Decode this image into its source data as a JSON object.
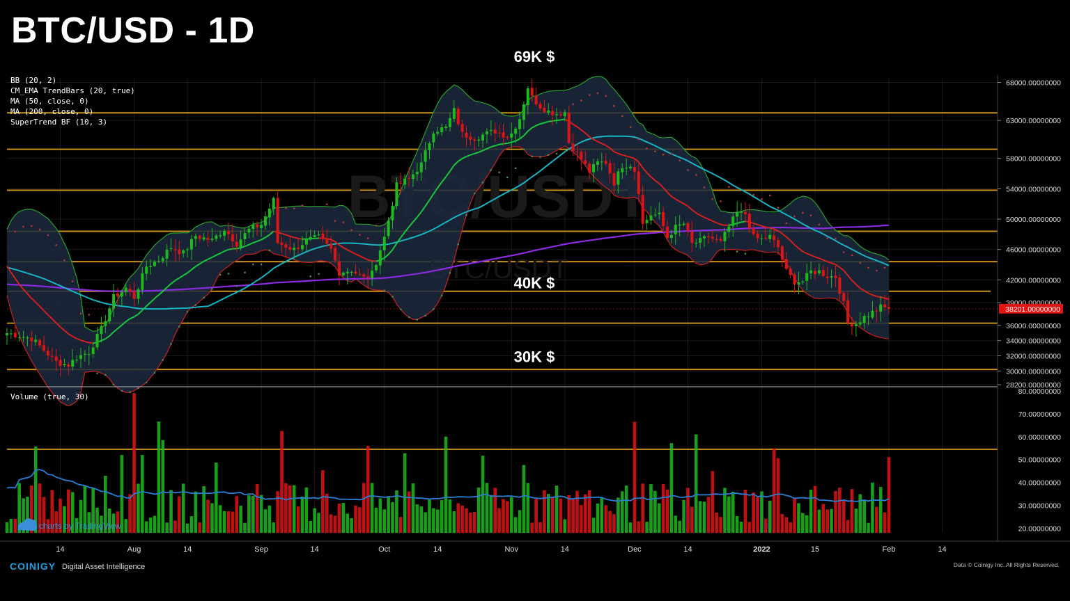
{
  "page": {
    "title": "BTC/USD - 1D"
  },
  "indicators": [
    "BB (20, 2)",
    "CM_EMA TrendBars (20, true)",
    "MA (50, close, 0)",
    "MA (200, close, 0)",
    "SuperTrend BF (10, 3)"
  ],
  "volume_label": "Volume (true, 30)",
  "annotations": [
    {
      "text": "69K $",
      "price": 70700
    },
    {
      "text": "40K $",
      "price": 40900
    },
    {
      "text": "30K $",
      "price": 31200
    }
  ],
  "watermark": {
    "main": "BTC/USDT",
    "sub": "BTC/USDT"
  },
  "tradingview_label": "charts by TradingView",
  "footer": {
    "brand": "COINIGY",
    "tagline": "Digital Asset Intelligence",
    "data_credit": "Data © Coinigy Inc. All Rights Reserved."
  },
  "current_price_label": "38201.00000000",
  "colors": {
    "bull": "#1fb81f",
    "bear": "#e01414",
    "level_line": "#c8921a",
    "bb_fill": "#1c2a40",
    "bb_upper": "#2aa12a",
    "bb_lower": "#cc2020",
    "ma50": "#18b4c4",
    "ma200": "#8a2be2",
    "ema20_bull": "#18c83c",
    "ema20_bear": "#d42020",
    "volume_ma": "#2a7fd4",
    "supertrend_up": "#4a8a5a",
    "supertrend_down": "#b03a3a"
  },
  "chart_data": {
    "type": "candlestick",
    "symbol": "BTC/USD",
    "interval": "1D",
    "y_axis": {
      "range": [
        28200,
        68600
      ],
      "ticks": [
        "68000.00000000",
        "63000.00000000",
        "58000.00000000",
        "54000.00000000",
        "50000.00000000",
        "46000.00000000",
        "42000.00000000",
        "39000.00000000",
        "36000.00000000",
        "34000.00000000",
        "32000.00000000",
        "30000.00000000",
        "28200.00000000"
      ],
      "tick_values": [
        68000,
        63000,
        58000,
        54000,
        50000,
        46000,
        42000,
        39000,
        36000,
        34000,
        32000,
        30000,
        28200
      ]
    },
    "volume_axis": {
      "range": [
        18000,
        80000
      ],
      "ticks": [
        "80.00000000",
        "70.00000000",
        "60.00000000",
        "50.00000000",
        "40.00000000",
        "30.00000000",
        "20.00000000"
      ],
      "tick_values": [
        80000,
        70000,
        60000,
        50000,
        40000,
        30000,
        20000
      ]
    },
    "x_axis": {
      "labels": [
        "14",
        "Aug",
        "14",
        "Sep",
        "14",
        "Oct",
        "14",
        "Nov",
        "14",
        "Dec",
        "14",
        "2022",
        "15",
        "Feb",
        "14"
      ],
      "label_days": [
        -3,
        15,
        28,
        46,
        59,
        76,
        89,
        107,
        120,
        137,
        150,
        168,
        181,
        199,
        212
      ],
      "first_candle_day": -16,
      "last_candle_day": 199
    },
    "horizontal_levels": [
      64000,
      59200,
      53800,
      48400,
      44400,
      40500,
      36300,
      30200
    ],
    "volume_level": 54500,
    "current_price": 38201,
    "keypoints": [
      [
        -16,
        35000
      ],
      [
        -10,
        34300
      ],
      [
        -4,
        31200
      ],
      [
        -1,
        30800
      ],
      [
        1,
        31800
      ],
      [
        4,
        32500
      ],
      [
        7,
        35500
      ],
      [
        10,
        39700
      ],
      [
        13,
        40900
      ],
      [
        15,
        39700
      ],
      [
        18,
        43800
      ],
      [
        21,
        44600
      ],
      [
        24,
        46300
      ],
      [
        27,
        45500
      ],
      [
        30,
        47800
      ],
      [
        34,
        47200
      ],
      [
        37,
        48700
      ],
      [
        40,
        46800
      ],
      [
        43,
        48600
      ],
      [
        46,
        49300
      ],
      [
        49,
        52500
      ],
      [
        50,
        46900
      ],
      [
        54,
        46000
      ],
      [
        57,
        47200
      ],
      [
        60,
        47600
      ],
      [
        63,
        46000
      ],
      [
        65,
        43000
      ],
      [
        68,
        43300
      ],
      [
        71,
        42200
      ],
      [
        73,
        42800
      ],
      [
        76,
        47600
      ],
      [
        79,
        54400
      ],
      [
        82,
        55300
      ],
      [
        85,
        57200
      ],
      [
        88,
        61700
      ],
      [
        91,
        62000
      ],
      [
        93,
        64300
      ],
      [
        95,
        61200
      ],
      [
        98,
        60700
      ],
      [
        100,
        61100
      ],
      [
        103,
        61600
      ],
      [
        106,
        60900
      ],
      [
        107,
        61300
      ],
      [
        109,
        63300
      ],
      [
        111,
        67400
      ],
      [
        112,
        66000
      ],
      [
        114,
        64900
      ],
      [
        116,
        64200
      ],
      [
        118,
        63900
      ],
      [
        120,
        64100
      ],
      [
        121,
        60100
      ],
      [
        123,
        58700
      ],
      [
        126,
        56300
      ],
      [
        128,
        57400
      ],
      [
        130,
        57500
      ],
      [
        132,
        54800
      ],
      [
        134,
        57100
      ],
      [
        136,
        57200
      ],
      [
        137,
        56400
      ],
      [
        138,
        53700
      ],
      [
        139,
        49300
      ],
      [
        141,
        50600
      ],
      [
        143,
        50500
      ],
      [
        145,
        47600
      ],
      [
        147,
        48900
      ],
      [
        149,
        49400
      ],
      [
        151,
        46700
      ],
      [
        153,
        47100
      ],
      [
        155,
        47700
      ],
      [
        158,
        46900
      ],
      [
        160,
        49000
      ],
      [
        162,
        50800
      ],
      [
        164,
        50700
      ],
      [
        166,
        47600
      ],
      [
        168,
        47300
      ],
      [
        170,
        47700
      ],
      [
        172,
        46300
      ],
      [
        174,
        43100
      ],
      [
        176,
        41800
      ],
      [
        178,
        41800
      ],
      [
        180,
        43100
      ],
      [
        182,
        43100
      ],
      [
        184,
        42500
      ],
      [
        186,
        42400
      ],
      [
        188,
        38800
      ],
      [
        189,
        36300
      ],
      [
        191,
        36300
      ],
      [
        193,
        37100
      ],
      [
        195,
        37700
      ],
      [
        197,
        38400
      ],
      [
        199,
        38201
      ]
    ]
  }
}
